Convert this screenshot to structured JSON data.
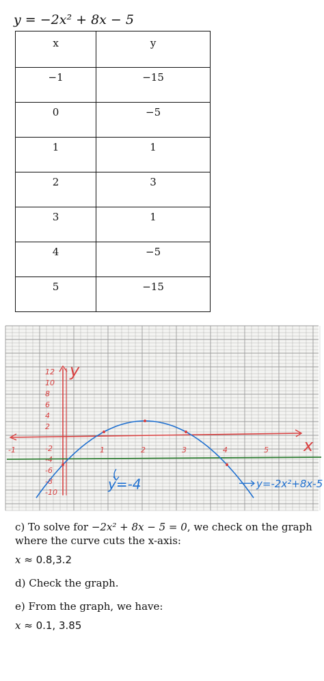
{
  "equation": "y = −2x² + 8x − 5",
  "table": {
    "headers": [
      "x",
      "y"
    ],
    "rows": [
      {
        "x": "−1",
        "y": "−15"
      },
      {
        "x": "0",
        "y": "−5"
      },
      {
        "x": "1",
        "y": "1"
      },
      {
        "x": "2",
        "y": "3"
      },
      {
        "x": "3",
        "y": "1"
      },
      {
        "x": "4",
        "y": "−5"
      },
      {
        "x": "5",
        "y": "−15"
      }
    ]
  },
  "graph": {
    "y_axis_label": "y",
    "x_axis_label": "x",
    "y_ticks": [
      "12",
      "10",
      "8",
      "6",
      "4",
      "2",
      "-2",
      "-4",
      "-6",
      "-8",
      "-10"
    ],
    "x_ticks": [
      "-1",
      "1",
      "2",
      "3",
      "4",
      "5"
    ],
    "line_label": "y=-4",
    "curve_label": "y=-2x²+8x-5",
    "colors": {
      "axes": "#d94040",
      "curve": "#1e6fd0",
      "line": "#2e7d32",
      "grid": "#9a9a9a"
    }
  },
  "chart_data": {
    "type": "line",
    "series": [
      {
        "name": "y=-2x²+8x-5",
        "x": [
          -1,
          0,
          1,
          2,
          3,
          4,
          5
        ],
        "y": [
          -15,
          -5,
          1,
          3,
          1,
          -5,
          -15
        ]
      },
      {
        "name": "y=-4",
        "x": [
          -1,
          5.6
        ],
        "y": [
          -4,
          -4
        ]
      }
    ],
    "xlabel": "x",
    "ylabel": "y",
    "xlim": [
      -1,
      5.6
    ],
    "ylim": [
      -10,
      12
    ],
    "grid": true
  },
  "notes": {
    "c_prefix": "c) To solve for ",
    "c_equation": "−2x² + 8x − 5 = 0",
    "c_suffix": ", we check on the graph where the curve cuts the x-axis:",
    "c_answer_var": "x",
    "c_answer": " ≈ 0.8,3.2",
    "d_text": "d) Check the graph.",
    "e_text": "e) From the graph, we have:",
    "e_answer_var": "x",
    "e_answer": " ≈ 0.1, 3.85"
  }
}
